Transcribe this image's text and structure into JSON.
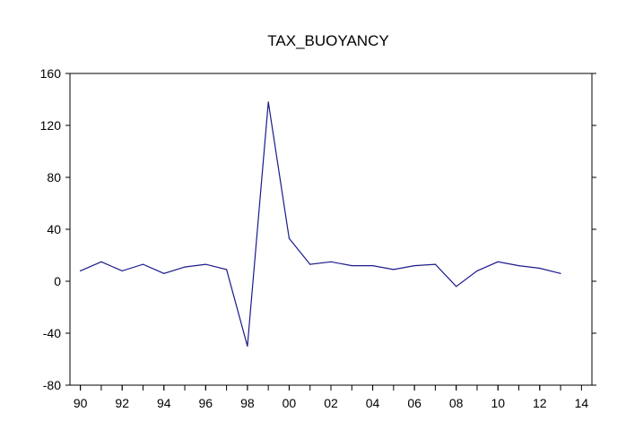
{
  "chart_data": {
    "type": "line",
    "title": "TAX_BUOYANCY",
    "xlabel": "",
    "ylabel": "",
    "x": [
      1990,
      1991,
      1992,
      1993,
      1994,
      1995,
      1996,
      1997,
      1998,
      1999,
      2000,
      2001,
      2002,
      2003,
      2004,
      2005,
      2006,
      2007,
      2008,
      2009,
      2010,
      2011,
      2012,
      2013
    ],
    "series": [
      {
        "values": [
          8,
          15,
          8,
          13,
          6,
          11,
          13,
          9,
          -50,
          138,
          33,
          13,
          15,
          12,
          12,
          9,
          12,
          13,
          -4,
          8,
          15,
          12,
          10,
          6
        ]
      }
    ],
    "xlim": [
      1989.5,
      2014.5
    ],
    "ylim": [
      -80,
      160
    ],
    "yticks": [
      -80,
      -40,
      0,
      40,
      80,
      120,
      160
    ],
    "ytick_labels": [
      "-80",
      "-40",
      "0",
      "40",
      "80",
      "120",
      "160"
    ],
    "xticks": [
      1990,
      1992,
      1994,
      1996,
      1998,
      2000,
      2002,
      2004,
      2006,
      2008,
      2010,
      2012,
      2014
    ],
    "xtick_labels": [
      "90",
      "92",
      "94",
      "96",
      "98",
      "00",
      "02",
      "04",
      "06",
      "08",
      "10",
      "12",
      "14"
    ],
    "grid": false,
    "legend": "none",
    "line_color": "#1a1a8c",
    "frame_color": "#000000"
  }
}
